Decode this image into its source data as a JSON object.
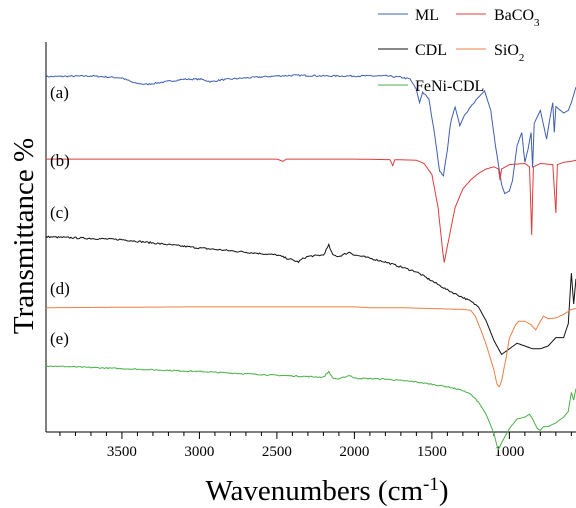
{
  "chart_data": {
    "type": "line",
    "xlabel": "Wavenumbers (cm-1)",
    "xlabel_parts": {
      "main": "Wavenumbers (cm",
      "sup": "-1",
      "close": ")"
    },
    "ylabel": "Transmittance %",
    "xlim": [
      3990,
      570
    ],
    "x_reversed": true,
    "xticks": [
      3500,
      3000,
      2500,
      2000,
      1500,
      1000
    ],
    "xtick_labels": [
      "3500",
      "3000",
      "2500",
      "2000",
      "1500",
      "1000"
    ],
    "yticks_visible": false,
    "grid": false,
    "legend": {
      "placement": "top-right",
      "entries": [
        {
          "series": "ML",
          "label": "ML",
          "sub": ""
        },
        {
          "series": "BaCO3",
          "label": "BaCO",
          "sub": "3"
        },
        {
          "series": "CDL",
          "label": "CDL",
          "sub": ""
        },
        {
          "series": "SiO2",
          "label": "SiO",
          "sub": "2"
        },
        {
          "series": "FeNi-CDL",
          "label": "FeNi-CDL",
          "sub": ""
        }
      ]
    },
    "series": [
      {
        "name": "ML",
        "curve_label": "(a)",
        "color": "#3f5fb0",
        "points": [
          [
            3990,
            0.98
          ],
          [
            3700,
            0.985
          ],
          [
            3500,
            0.97
          ],
          [
            3420,
            0.93
          ],
          [
            3340,
            0.92
          ],
          [
            3250,
            0.935
          ],
          [
            3100,
            0.96
          ],
          [
            2990,
            0.96
          ],
          [
            2925,
            0.94
          ],
          [
            2860,
            0.955
          ],
          [
            2700,
            0.97
          ],
          [
            2500,
            0.985
          ],
          [
            2360,
            0.99
          ],
          [
            2200,
            0.985
          ],
          [
            2000,
            0.985
          ],
          [
            1800,
            0.985
          ],
          [
            1700,
            0.975
          ],
          [
            1640,
            0.96
          ],
          [
            1600,
            0.88
          ],
          [
            1580,
            0.78
          ],
          [
            1560,
            0.86
          ],
          [
            1520,
            0.81
          ],
          [
            1480,
            0.52
          ],
          [
            1450,
            0.25
          ],
          [
            1425,
            0.22
          ],
          [
            1400,
            0.42
          ],
          [
            1380,
            0.62
          ],
          [
            1350,
            0.75
          ],
          [
            1320,
            0.6
          ],
          [
            1290,
            0.68
          ],
          [
            1250,
            0.75
          ],
          [
            1200,
            0.82
          ],
          [
            1160,
            0.87
          ],
          [
            1120,
            0.72
          ],
          [
            1090,
            0.45
          ],
          [
            1050,
            0.15
          ],
          [
            1030,
            0.08
          ],
          [
            1000,
            0.1
          ],
          [
            980,
            0.18
          ],
          [
            950,
            0.45
          ],
          [
            920,
            0.55
          ],
          [
            900,
            0.32
          ],
          [
            880,
            0.42
          ],
          [
            860,
            0.55
          ],
          [
            850,
            0.28
          ],
          [
            840,
            0.62
          ],
          [
            800,
            0.72
          ],
          [
            760,
            0.5
          ],
          [
            740,
            0.65
          ],
          [
            720,
            0.78
          ],
          [
            710,
            0.55
          ],
          [
            700,
            0.75
          ],
          [
            650,
            0.7
          ],
          [
            620,
            0.72
          ],
          [
            600,
            0.78
          ],
          [
            570,
            0.9
          ]
        ]
      },
      {
        "name": "BaCO3",
        "curve_label": "(b)",
        "color": "#e03c3c",
        "points": [
          [
            3990,
            0.99
          ],
          [
            3000,
            0.99
          ],
          [
            2500,
            0.99
          ],
          [
            2460,
            0.97
          ],
          [
            2440,
            0.99
          ],
          [
            2000,
            0.99
          ],
          [
            1770,
            0.985
          ],
          [
            1752,
            0.93
          ],
          [
            1740,
            0.985
          ],
          [
            1600,
            0.98
          ],
          [
            1550,
            0.95
          ],
          [
            1500,
            0.85
          ],
          [
            1460,
            0.55
          ],
          [
            1430,
            0.15
          ],
          [
            1420,
            0.05
          ],
          [
            1400,
            0.2
          ],
          [
            1350,
            0.55
          ],
          [
            1300,
            0.72
          ],
          [
            1250,
            0.8
          ],
          [
            1200,
            0.86
          ],
          [
            1150,
            0.9
          ],
          [
            1100,
            0.92
          ],
          [
            1070,
            0.9
          ],
          [
            1060,
            0.8
          ],
          [
            1050,
            0.9
          ],
          [
            1000,
            0.94
          ],
          [
            900,
            0.95
          ],
          [
            870,
            0.92
          ],
          [
            856,
            0.3
          ],
          [
            845,
            0.92
          ],
          [
            800,
            0.95
          ],
          [
            720,
            0.94
          ],
          [
            700,
            0.5
          ],
          [
            690,
            0.94
          ],
          [
            650,
            0.96
          ],
          [
            600,
            0.97
          ],
          [
            570,
            0.98
          ]
        ]
      },
      {
        "name": "CDL",
        "curve_label": "(c)",
        "color": "#111111",
        "points": [
          [
            3990,
            0.98
          ],
          [
            3500,
            0.96
          ],
          [
            3000,
            0.9
          ],
          [
            2500,
            0.85
          ],
          [
            2360,
            0.8
          ],
          [
            2340,
            0.82
          ],
          [
            2300,
            0.84
          ],
          [
            2200,
            0.85
          ],
          [
            2165,
            0.92
          ],
          [
            2140,
            0.85
          ],
          [
            2100,
            0.84
          ],
          [
            2030,
            0.87
          ],
          [
            2000,
            0.85
          ],
          [
            1950,
            0.84
          ],
          [
            1800,
            0.8
          ],
          [
            1600,
            0.73
          ],
          [
            1400,
            0.6
          ],
          [
            1250,
            0.52
          ],
          [
            1200,
            0.48
          ],
          [
            1150,
            0.38
          ],
          [
            1100,
            0.24
          ],
          [
            1050,
            0.14
          ],
          [
            1000,
            0.18
          ],
          [
            950,
            0.22
          ],
          [
            900,
            0.2
          ],
          [
            850,
            0.18
          ],
          [
            800,
            0.18
          ],
          [
            750,
            0.2
          ],
          [
            700,
            0.26
          ],
          [
            650,
            0.26
          ],
          [
            620,
            0.36
          ],
          [
            600,
            0.72
          ],
          [
            585,
            0.5
          ],
          [
            570,
            0.68
          ]
        ]
      },
      {
        "name": "SiO2",
        "curve_label": "(d)",
        "color": "#ee7f45",
        "points": [
          [
            3990,
            0.98
          ],
          [
            3500,
            0.985
          ],
          [
            3000,
            0.99
          ],
          [
            2500,
            0.99
          ],
          [
            2000,
            0.99
          ],
          [
            1900,
            0.98
          ],
          [
            1700,
            0.98
          ],
          [
            1500,
            0.97
          ],
          [
            1300,
            0.96
          ],
          [
            1250,
            0.95
          ],
          [
            1220,
            0.88
          ],
          [
            1180,
            0.7
          ],
          [
            1150,
            0.55
          ],
          [
            1100,
            0.25
          ],
          [
            1080,
            0.08
          ],
          [
            1065,
            0.05
          ],
          [
            1050,
            0.12
          ],
          [
            1020,
            0.4
          ],
          [
            1000,
            0.62
          ],
          [
            960,
            0.78
          ],
          [
            940,
            0.82
          ],
          [
            900,
            0.82
          ],
          [
            860,
            0.78
          ],
          [
            830,
            0.72
          ],
          [
            800,
            0.82
          ],
          [
            780,
            0.88
          ],
          [
            750,
            0.85
          ],
          [
            700,
            0.86
          ],
          [
            650,
            0.9
          ],
          [
            600,
            0.96
          ],
          [
            570,
            0.97
          ]
        ]
      },
      {
        "name": "FeNi-CDL",
        "curve_label": "(e)",
        "color": "#49b047",
        "points": [
          [
            3990,
            0.96
          ],
          [
            3500,
            0.93
          ],
          [
            3000,
            0.9
          ],
          [
            2500,
            0.86
          ],
          [
            2200,
            0.84
          ],
          [
            2165,
            0.9
          ],
          [
            2140,
            0.83
          ],
          [
            2100,
            0.82
          ],
          [
            2030,
            0.86
          ],
          [
            2000,
            0.83
          ],
          [
            1800,
            0.82
          ],
          [
            1600,
            0.79
          ],
          [
            1400,
            0.74
          ],
          [
            1300,
            0.7
          ],
          [
            1250,
            0.66
          ],
          [
            1200,
            0.58
          ],
          [
            1150,
            0.45
          ],
          [
            1100,
            0.25
          ],
          [
            1080,
            0.12
          ],
          [
            1070,
            0.08
          ],
          [
            1050,
            0.15
          ],
          [
            1000,
            0.3
          ],
          [
            950,
            0.4
          ],
          [
            900,
            0.42
          ],
          [
            870,
            0.45
          ],
          [
            850,
            0.4
          ],
          [
            820,
            0.3
          ],
          [
            800,
            0.28
          ],
          [
            780,
            0.32
          ],
          [
            750,
            0.32
          ],
          [
            700,
            0.36
          ],
          [
            650,
            0.42
          ],
          [
            620,
            0.48
          ],
          [
            600,
            0.68
          ],
          [
            585,
            0.6
          ],
          [
            570,
            0.72
          ]
        ]
      }
    ]
  }
}
